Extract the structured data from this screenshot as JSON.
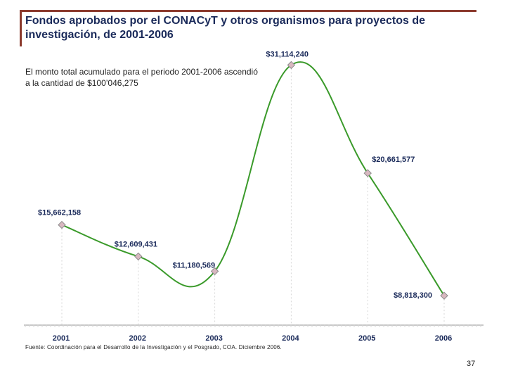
{
  "title": "Fondos aprobados por el CONACyT y otros organismos para proyectos de investigación, de 2001-2006",
  "note": "El monto total acumulado para el periodo 2001-2006 ascendió a la cantidad de $100’046,275",
  "source": "Fuente: Coordinación para el Desarrollo de la Investigación y el Posgrado, COA.  Diciembre 2006.",
  "page_number": "37",
  "colors": {
    "line": "#3a9a2a",
    "marker_fill": "#d8b8c0",
    "marker_stroke": "#8a8a8a",
    "title": "#1a2a5a",
    "accent": "#8b3a2e"
  },
  "chart_data": {
    "type": "line",
    "title": "",
    "xlabel": "",
    "ylabel": "",
    "categories": [
      "2001",
      "2002",
      "2003",
      "2004",
      "2005",
      "2006"
    ],
    "values": [
      15662158,
      12609431,
      11180569,
      31114240,
      20661577,
      8818300
    ],
    "labels": [
      "$15,662,158",
      "$12,609,431",
      "$11,180,569",
      "$31,114,240",
      "$20,661,577",
      "$8,818,300"
    ],
    "ylim": [
      0,
      35000000
    ],
    "grid": false,
    "smooth": true
  }
}
